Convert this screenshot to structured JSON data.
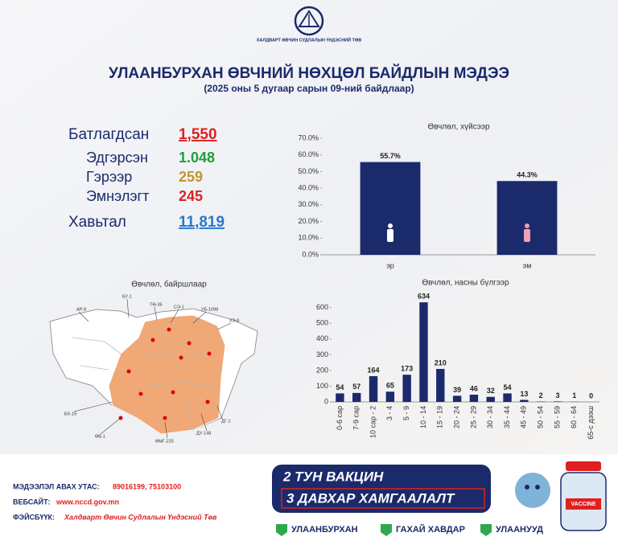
{
  "header": {
    "logo_text": "ХАЛДВАРТ ӨВЧИН СУДЛАЛЫН ҮНДЭСНИЙ ТӨВ",
    "title": "УЛААНБУРХАН ӨВЧНИЙ НӨХЦӨЛ БАЙДЛЫН МЭДЭЭ",
    "subtitle": "(2025 оны 5 дугаар сарын 09-ний байдлаар)"
  },
  "stats": [
    {
      "label": "Батлагдсан",
      "value": "1,550"
    },
    {
      "label": "Эдгэрсэн",
      "value": "1.048"
    },
    {
      "label": "Гэрээр",
      "value": "259"
    },
    {
      "label": "Эмнэлэгт",
      "value": "245"
    },
    {
      "label": "Хавьтал",
      "value": "11,819"
    }
  ],
  "map": {
    "title": "Өвчлөл, байршлаар",
    "labels": [
      "АР-8",
      "БУ-1",
      "ТӨ-35",
      "СЭ-1",
      "УБ-1098",
      "ХЭ-8",
      "БХ-19",
      "ӨВ-1",
      "ӨМГ-225",
      "ДУ-148",
      "ДГ-1"
    ]
  },
  "chart_data": [
    {
      "type": "bar",
      "title": "Өвчлөл, хүйсээр",
      "categories": [
        "эр",
        "эм"
      ],
      "values": [
        55.7,
        44.3
      ],
      "value_labels": [
        "55.7%",
        "44.3%"
      ],
      "color": "#1b2a6b",
      "ylim": [
        0,
        70
      ],
      "yticks": [
        {
          "value": 0,
          "label": "0.0%"
        },
        {
          "value": 10,
          "label": "10.0%"
        },
        {
          "value": 20,
          "label": "20.0%"
        },
        {
          "value": 30,
          "label": "30.0%"
        },
        {
          "value": 40,
          "label": "40.0%"
        },
        {
          "value": 50,
          "label": "50.0%"
        },
        {
          "value": 60,
          "label": "60.0%"
        },
        {
          "value": 70,
          "label": "70.0%"
        }
      ]
    },
    {
      "type": "bar",
      "title": "Өвчлөл, насны бүлгээр",
      "categories": [
        "0-6 сар",
        "7-9 сар",
        "10 сар - 2",
        "3 - 4",
        "5 - 9",
        "10 - 14",
        "15 - 19",
        "20 - 24",
        "25 - 29",
        "30 - 34",
        "35 - 44",
        "45 - 49",
        "50 - 54",
        "55 - 59",
        "60 - 64",
        "65-с дээш"
      ],
      "values": [
        54,
        57,
        164,
        65,
        173,
        634,
        210,
        39,
        46,
        32,
        54,
        13,
        2,
        3,
        1,
        0
      ],
      "color": "#1b2a6b",
      "ylim": [
        0,
        650
      ],
      "yticks": [
        0,
        100,
        200,
        300,
        400,
        500,
        600
      ]
    }
  ],
  "footer": {
    "phone_label": "МЭДЭЭЛЭЛ АВАХ УТАС:",
    "phone": "89016199,  75103100",
    "web_label": "ВЕБСАЙТ:",
    "web": "www.nccd.gov.mn",
    "fb_label": "ФЭЙСБҮҮК:",
    "fb": "Халдварт Өвчин Судлалын Үндэсний Төв",
    "banner_1": "2 ТУН ВАКЦИН",
    "banner_2": "3 ДАВХАР ХАМГААЛАЛТ",
    "checks": [
      "УЛААНБУРХАН",
      "ГАХАЙ ХАВДАР",
      "УЛААНУУД"
    ],
    "bottle": "VACCINE"
  }
}
